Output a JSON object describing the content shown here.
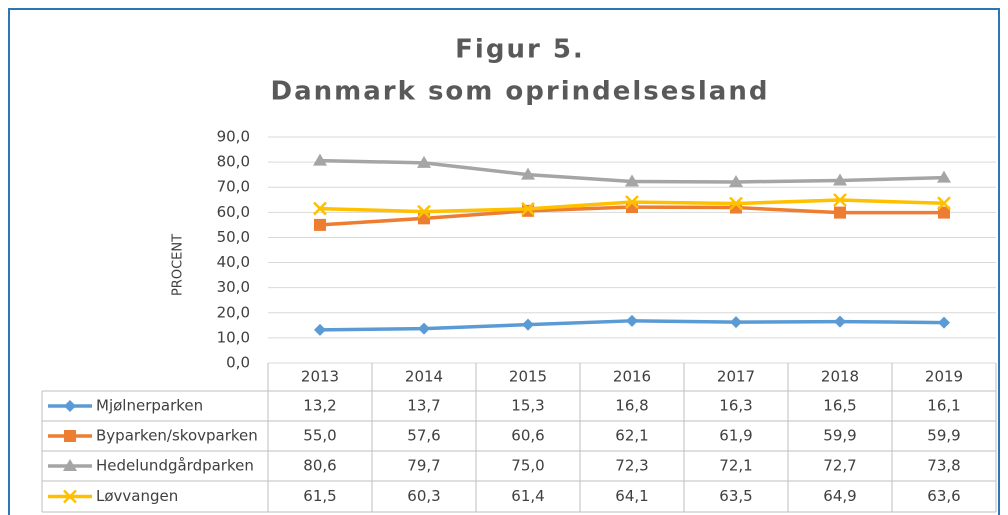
{
  "chart_data": {
    "type": "line",
    "title": [
      "Figur 5.",
      "Danmark som oprindelsesland"
    ],
    "ylabel": "PROCENT",
    "categories": [
      "2013",
      "2014",
      "2015",
      "2016",
      "2017",
      "2018",
      "2019"
    ],
    "series": [
      {
        "name": "Mjølnerparken",
        "color": "#5b9bd5",
        "marker": "diamond",
        "values": [
          13.2,
          13.7,
          15.3,
          16.8,
          16.3,
          16.5,
          16.1
        ],
        "value_labels": [
          "13,2",
          "13,7",
          "15,3",
          "16,8",
          "16,3",
          "16,5",
          "16,1"
        ]
      },
      {
        "name": "Byparken/skovparken",
        "color": "#ed7d31",
        "marker": "square",
        "values": [
          55.0,
          57.6,
          60.6,
          62.1,
          61.9,
          59.9,
          59.9
        ],
        "value_labels": [
          "55,0",
          "57,6",
          "60,6",
          "62,1",
          "61,9",
          "59,9",
          "59,9"
        ]
      },
      {
        "name": "Hedelundgårdparken",
        "color": "#a5a5a5",
        "marker": "triangle",
        "values": [
          80.6,
          79.7,
          75.0,
          72.3,
          72.1,
          72.7,
          73.8
        ],
        "value_labels": [
          "80,6",
          "79,7",
          "75,0",
          "72,3",
          "72,1",
          "72,7",
          "73,8"
        ]
      },
      {
        "name": "Løvvangen",
        "color": "#ffc000",
        "marker": "x",
        "values": [
          61.5,
          60.3,
          61.4,
          64.1,
          63.5,
          64.9,
          63.6
        ],
        "value_labels": [
          "61,5",
          "60,3",
          "61,4",
          "64,1",
          "63,5",
          "64,9",
          "63,6"
        ]
      }
    ],
    "ylim": [
      0,
      90
    ],
    "yticks": [
      {
        "value": 0,
        "label": "0,0"
      },
      {
        "value": 10,
        "label": "10,0"
      },
      {
        "value": 20,
        "label": "20,0"
      },
      {
        "value": 30,
        "label": "30,0"
      },
      {
        "value": 40,
        "label": "40,0"
      },
      {
        "value": 50,
        "label": "50,0"
      },
      {
        "value": 60,
        "label": "60,0"
      },
      {
        "value": 70,
        "label": "70,0"
      },
      {
        "value": 80,
        "label": "80,0"
      },
      {
        "value": 90,
        "label": "90,0"
      }
    ],
    "grid": true
  }
}
